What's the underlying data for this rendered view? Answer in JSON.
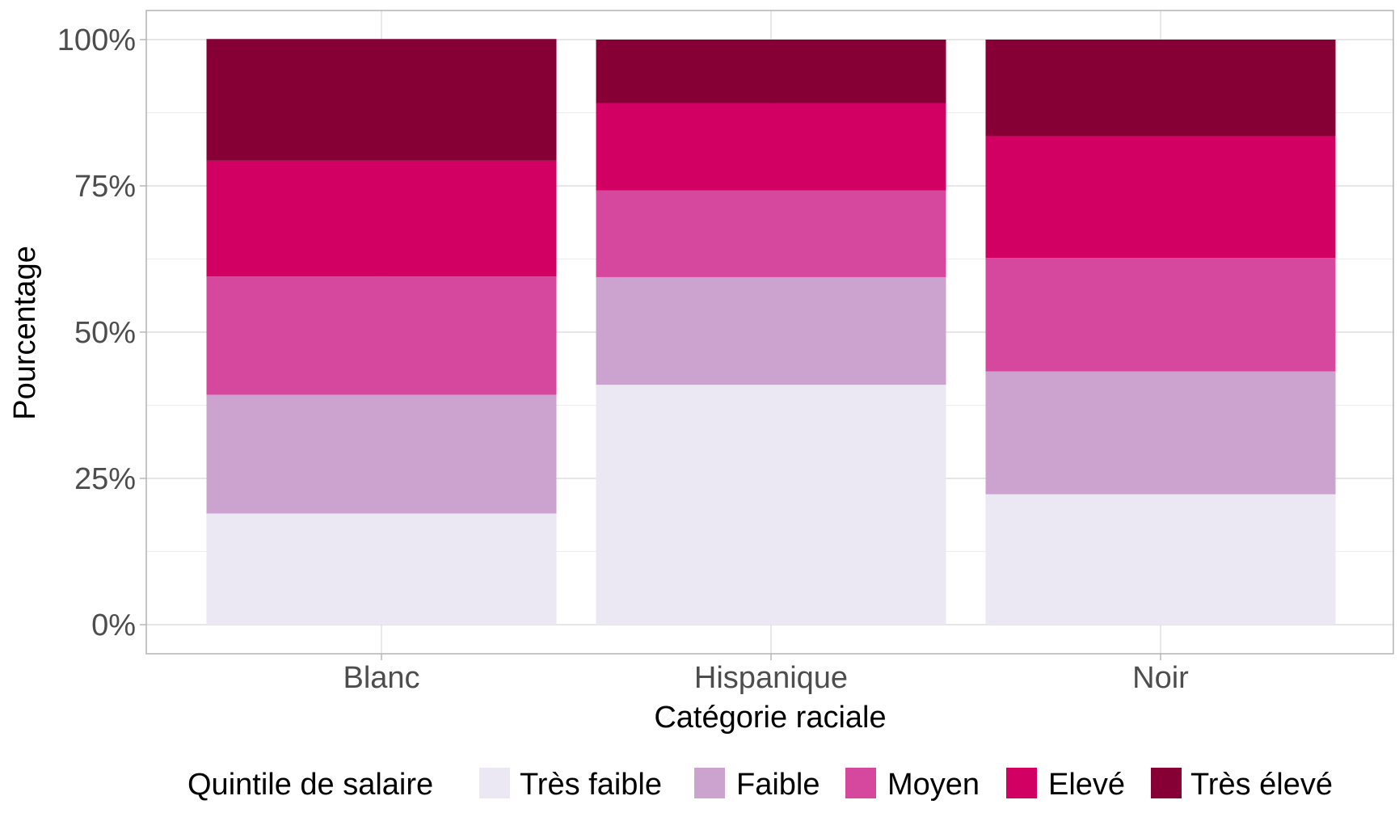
{
  "chart_data": {
    "type": "bar",
    "stacked": true,
    "percent": true,
    "categories": [
      "Blanc",
      "Hispanique",
      "Noir"
    ],
    "series": [
      {
        "name": "Très faible",
        "color": "#EBE7F3",
        "values": [
          19.0,
          41.0,
          22.3
        ]
      },
      {
        "name": "Faible",
        "color": "#CCA3CE",
        "values": [
          20.3,
          18.4,
          21.0
        ]
      },
      {
        "name": "Moyen",
        "color": "#D6489E",
        "values": [
          20.2,
          14.8,
          19.4
        ]
      },
      {
        "name": "Elevé",
        "color": "#D20062",
        "values": [
          19.8,
          14.9,
          20.8
        ]
      },
      {
        "name": "Très élevé",
        "color": "#860035",
        "values": [
          20.8,
          10.9,
          16.5
        ]
      }
    ],
    "xlabel": "Catégorie raciale",
    "ylabel": "Pourcentage",
    "ylim": [
      0,
      100
    ],
    "yticks": [
      "0%",
      "25%",
      "50%",
      "75%",
      "100%"
    ],
    "legend_title": "Quintile de salaire",
    "legend_position": "bottom",
    "grid": true
  }
}
